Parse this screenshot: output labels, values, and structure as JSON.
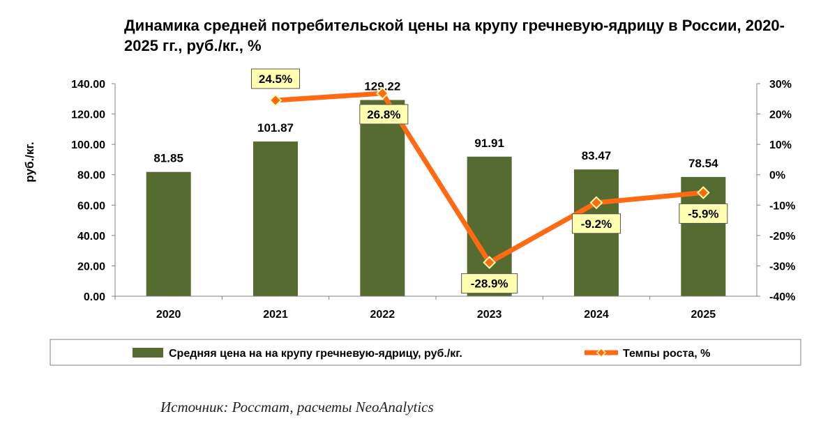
{
  "chart_data": {
    "type": "bar+line",
    "title": "Динамика средней потребительской цены на крупу гречневую-ядрицу в России, 2020-2025 гг., руб./кг., %",
    "categories": [
      "2020",
      "2021",
      "2022",
      "2023",
      "2024",
      "2025"
    ],
    "ylabel": "руб./кг.",
    "ylim": [
      0,
      140
    ],
    "yticks": [
      "0.00",
      "20.00",
      "40.00",
      "60.00",
      "80.00",
      "100.00",
      "120.00",
      "140.00"
    ],
    "y2lim": [
      -40,
      30
    ],
    "y2ticks": [
      "-40%",
      "-30%",
      "-20%",
      "-10%",
      "0%",
      "10%",
      "20%",
      "30%"
    ],
    "series": [
      {
        "name": "Средняя цена на на крупу гречневую-ядрицу, руб./кг.",
        "type": "bar",
        "axis": "left",
        "color": "#556b2f",
        "values": [
          81.85,
          101.87,
          129.22,
          91.91,
          83.47,
          78.54
        ],
        "labels": [
          "81.85",
          "101.87",
          "129.22",
          "91.91",
          "83.47",
          "78.54"
        ]
      },
      {
        "name": "Темпы роста, %",
        "type": "line",
        "axis": "right",
        "color": "#ff6a13",
        "marker_color": "#ffffb0",
        "values": [
          null,
          24.5,
          26.8,
          -28.9,
          -9.2,
          -5.9
        ],
        "labels": [
          "",
          "24.5%",
          "26.8%",
          "-28.9%",
          "-9.2%",
          "-5.9%"
        ]
      }
    ],
    "grid": false,
    "legend": "bottom"
  },
  "source": "Источник: Росстат, расчеты NeoAnalytics"
}
